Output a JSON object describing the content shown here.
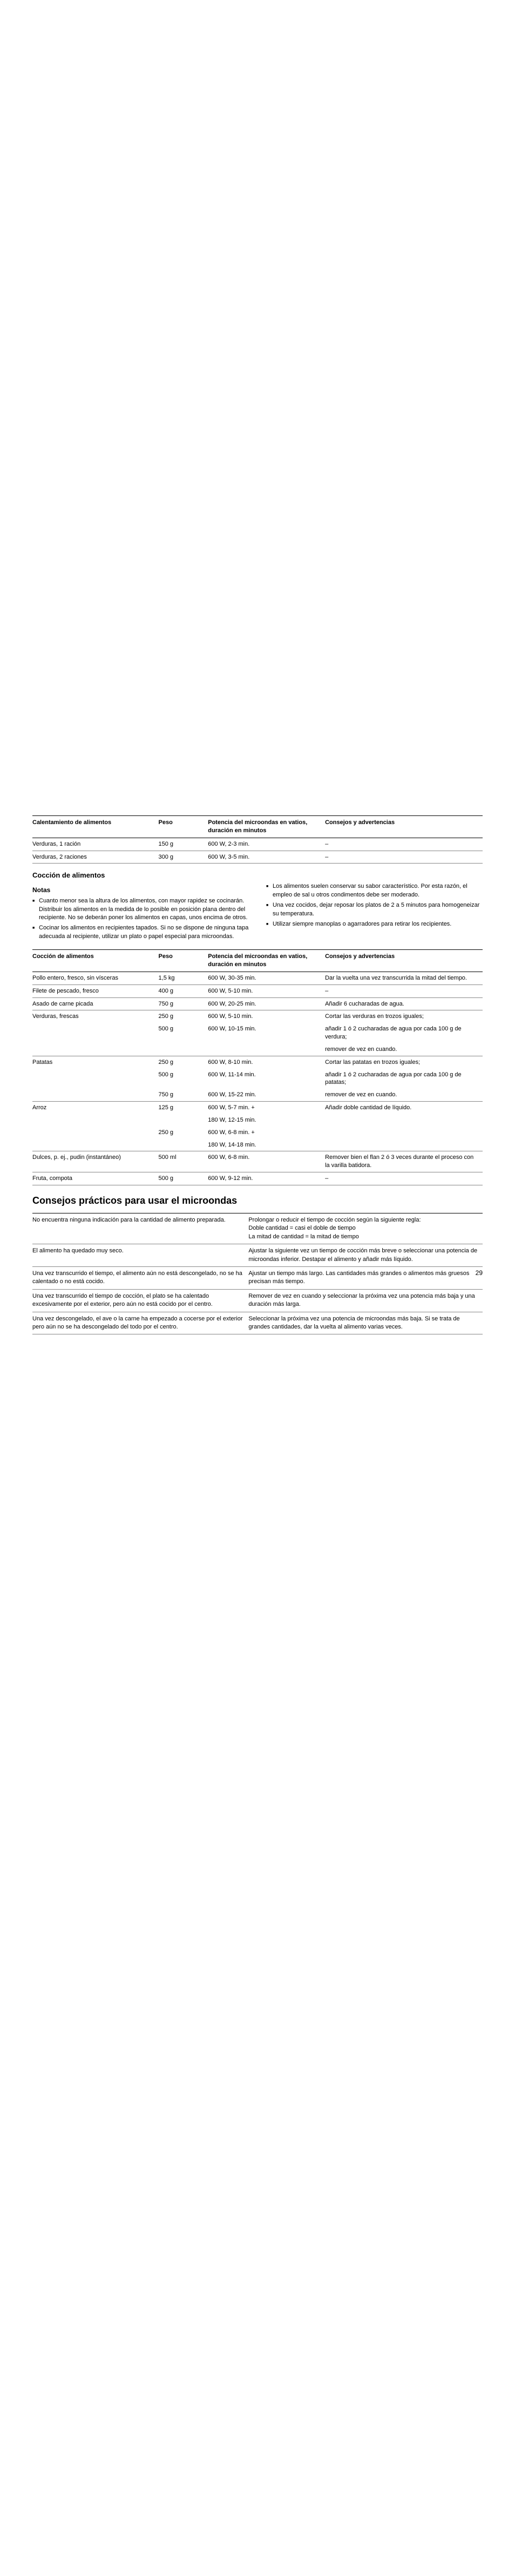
{
  "table1": {
    "headers": [
      "Calentamiento de alimentos",
      "Peso",
      "Potencia del microondas en vatios, duración en minutos",
      "Consejos y advertencias"
    ],
    "rows": [
      [
        "Verduras, 1 ración",
        "150 g",
        "600 W, 2-3 min.",
        "–"
      ],
      [
        "Verduras, 2 raciones",
        "300 g",
        "600 W, 3-5 min.",
        "–"
      ]
    ]
  },
  "coccion": {
    "title": "Cocción de alimentos",
    "notas_title": "Notas",
    "left": [
      "Cuanto menor sea la altura de los alimentos, con mayor rapidez se cocinarán. Distribuir los alimentos en la medida de lo posible en posición plana dentro del recipiente. No se deberán poner los alimentos en capas, unos encima de otros.",
      "Cocinar los alimentos en recipientes tapados. Si no se dispone de ninguna tapa adecuada al recipiente, utilizar un plato o papel especial para microondas."
    ],
    "right": [
      "Los alimentos suelen conservar su sabor característico. Por esta razón, el empleo de sal u otros condimentos debe ser moderado.",
      "Una vez cocidos, dejar reposar los platos de 2 a 5 minutos para homogeneizar su temperatura.",
      "Utilizar siempre manoplas o agarradores para retirar los recipientes."
    ]
  },
  "table2": {
    "headers": [
      "Cocción de alimentos",
      "Peso",
      "Potencia del microondas en vatios, duración en minutos",
      "Consejos y advertencias"
    ],
    "rows": [
      {
        "c": [
          "Pollo entero, fresco, sin vísceras",
          "1,5 kg",
          "600 W, 30-35 min.",
          "Dar la vuelta una vez transcurrida la mitad del tiempo."
        ]
      },
      {
        "c": [
          "Filete de pescado, fresco",
          "400 g",
          "600 W, 5-10 min.",
          "–"
        ]
      },
      {
        "c": [
          "Asado de carne picada",
          "750 g",
          "600 W, 20-25 min.",
          "Añadir 6 cucharadas de agua."
        ]
      },
      {
        "c": [
          "Verduras, frescas",
          "250 g",
          "600 W, 5-10 min.",
          "Cortar las verduras en trozos iguales;"
        ],
        "nb": true
      },
      {
        "c": [
          "",
          "500 g",
          "600 W, 10-15 min.",
          "añadir 1 ó 2 cucharadas de agua por cada 100 g de verdura;"
        ],
        "nb": true
      },
      {
        "c": [
          "",
          "",
          "",
          "remover de vez en cuando."
        ]
      },
      {
        "c": [
          "Patatas",
          "250 g",
          "600 W, 8-10 min.",
          "Cortar las patatas en trozos iguales;"
        ],
        "nb": true
      },
      {
        "c": [
          "",
          "500 g",
          "600 W, 11-14 min.",
          "añadir 1 ó 2 cucharadas de agua por cada 100 g de patatas;"
        ],
        "nb": true
      },
      {
        "c": [
          "",
          "750 g",
          "600 W, 15-22 min.",
          "remover de vez en cuando."
        ]
      },
      {
        "c": [
          "Arroz",
          "125 g",
          "600 W, 5-7 min. +",
          "Añadir doble cantidad de líquido."
        ],
        "nb": true
      },
      {
        "c": [
          "",
          "",
          "180 W, 12-15 min.",
          ""
        ],
        "nb": true
      },
      {
        "c": [
          "",
          "250 g",
          "600 W, 6-8 min. +",
          ""
        ],
        "nb": true
      },
      {
        "c": [
          "",
          "",
          "180 W, 14-18 min.",
          ""
        ]
      },
      {
        "c": [
          "Dulces, p. ej., pudin (instantáneo)",
          "500 ml",
          "600 W, 6-8 min.",
          "Remover bien el flan 2 ó 3 veces durante el proceso con la varilla batidora."
        ]
      },
      {
        "c": [
          "Fruta, compota",
          "500 g",
          "600 W, 9-12 min.",
          "–"
        ]
      }
    ]
  },
  "consejos": {
    "title": "Consejos prácticos para usar el microondas",
    "rows": [
      [
        "No encuentra ninguna indicación para la cantidad de alimento preparada.",
        "Prolongar o reducir el tiempo de cocción según la siguiente regla:\nDoble cantidad = casi el doble de tiempo\nLa mitad de cantidad = la mitad de tiempo"
      ],
      [
        "El alimento ha quedado muy seco.",
        "Ajustar la siguiente vez un tiempo de cocción más breve o seleccionar una potencia de microondas inferior. Destapar el alimento y añadir más líquido."
      ],
      [
        "Una vez transcurrido el tiempo, el alimento aún no está descongelado, no se ha calentado o no está cocido.",
        "Ajustar un tiempo más largo. Las cantidades más grandes o alimentos más gruesos precisan más tiempo."
      ],
      [
        "Una vez transcurrido el tiempo de cocción, el plato se ha calentado excesivamente por el exterior, pero aún no está cocido por el centro.",
        "Remover de vez en cuando y seleccionar la próxima vez una potencia más baja y una duración más larga."
      ],
      [
        "Una vez descongelado, el ave o la carne ha empezado a cocerse por el exterior pero aún no se ha descongelado del todo por el centro.",
        "Seleccionar la próxima vez una potencia de microondas más baja. Si se trata de grandes cantidades, dar la vuelta al alimento varias veces."
      ]
    ]
  },
  "page_number": "29"
}
